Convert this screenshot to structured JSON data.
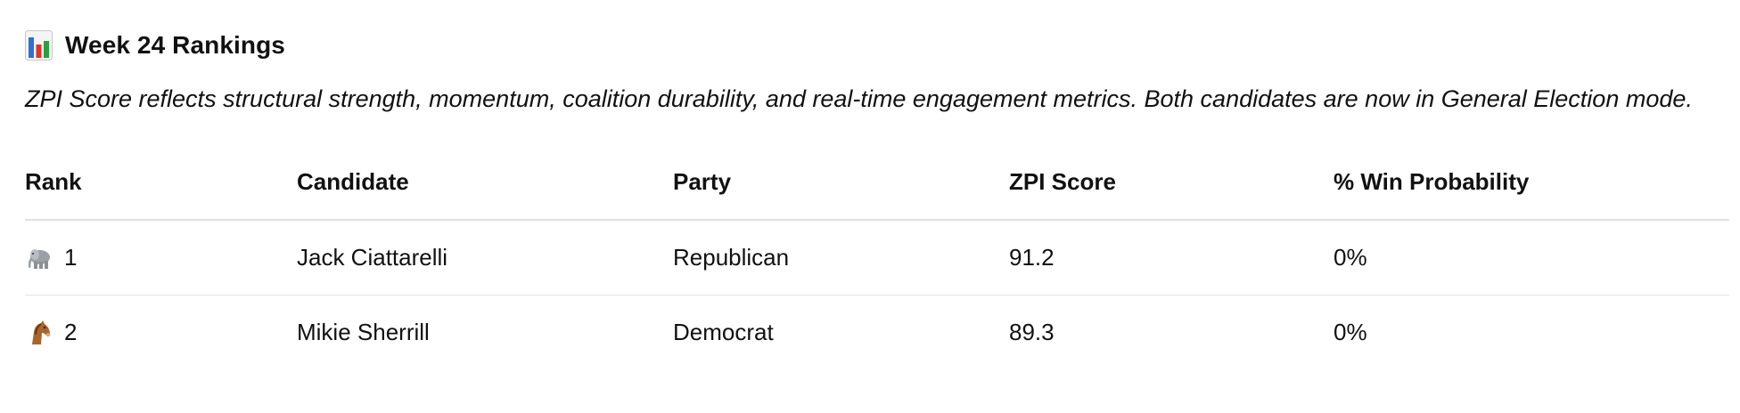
{
  "heading": {
    "icon": "bar-chart-icon",
    "title": "Week 24 Rankings"
  },
  "intro": "ZPI Score reflects structural strength, momentum, coalition durability, and real-time engagement metrics. Both candidates are now in General Election mode.",
  "table": {
    "headers": {
      "rank": "Rank",
      "candidate": "Candidate",
      "party": "Party",
      "zpi": "ZPI Score",
      "win": "% Win Probability"
    },
    "rows": [
      {
        "icon": "elephant-icon",
        "rank": "1",
        "candidate": "Jack Ciattarelli",
        "party": "Republican",
        "zpi": "91.2",
        "win": "0%"
      },
      {
        "icon": "horse-icon",
        "rank": "2",
        "candidate": "Mikie Sherrill",
        "party": "Democrat",
        "zpi": "89.3",
        "win": "0%"
      }
    ]
  },
  "colors": {
    "bar_blue": "#2f6fd6",
    "bar_red": "#e0352b",
    "bar_green": "#2e9d3f"
  }
}
